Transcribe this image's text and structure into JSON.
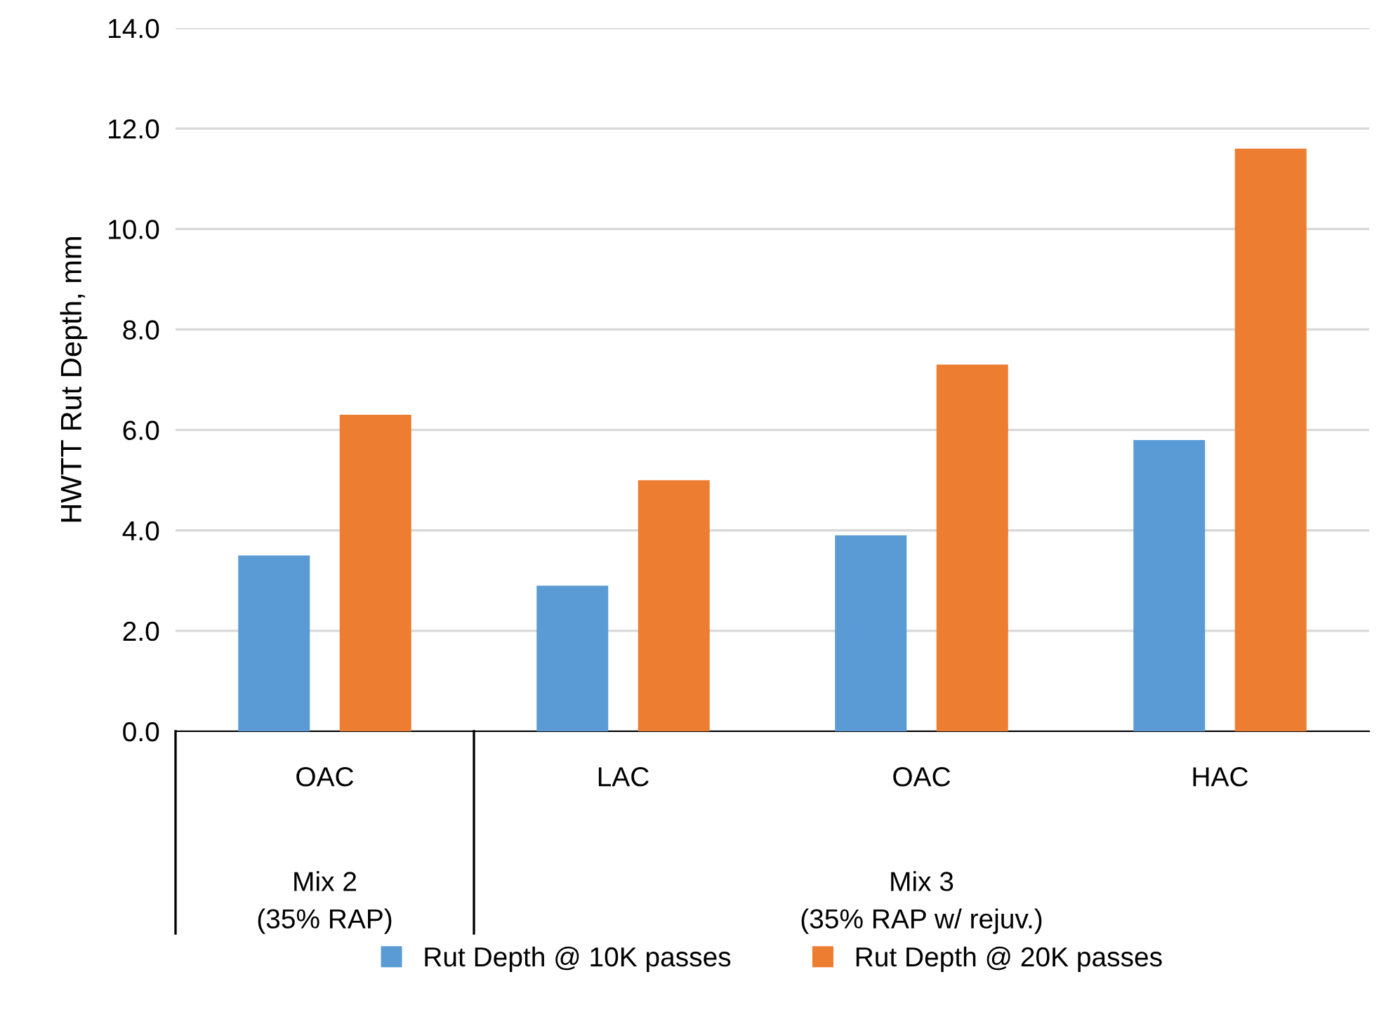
{
  "chart_data": {
    "type": "bar",
    "ylabel": "HWTT Rut Depth, mm",
    "categories": [
      "OAC",
      "LAC",
      "OAC",
      "HAC"
    ],
    "series": [
      {
        "name": "Rut Depth @ 10K passes",
        "color": "#5b9bd5",
        "values": [
          3.5,
          2.9,
          3.9,
          5.8
        ]
      },
      {
        "name": "Rut Depth @ 20K passes",
        "color": "#ed7d31",
        "values": [
          6.3,
          5.0,
          7.3,
          11.6
        ]
      }
    ],
    "ylim": [
      0,
      14
    ],
    "yticks": [
      {
        "value": 0,
        "label": "0.0"
      },
      {
        "value": 2,
        "label": "2.0"
      },
      {
        "value": 4,
        "label": "4.0"
      },
      {
        "value": 6,
        "label": "6.0"
      },
      {
        "value": 8,
        "label": "8.0"
      },
      {
        "value": 10,
        "label": "10.0"
      },
      {
        "value": 12,
        "label": "12.0"
      },
      {
        "value": 14,
        "label": "14.0"
      }
    ],
    "annotations": [
      "Mix 2\n(35% RAP)",
      "Mix 3\n(35% RAP w/ rejuv.)"
    ],
    "grid": "y",
    "legend": "bottom"
  }
}
